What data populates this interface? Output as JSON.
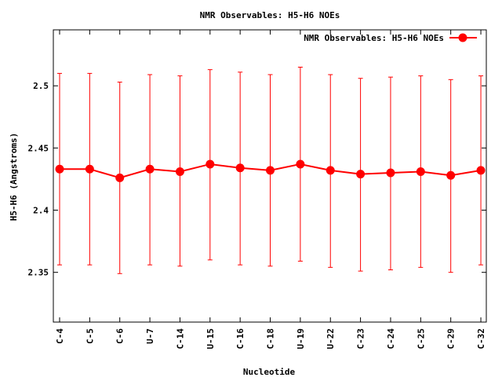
{
  "chart_data": {
    "type": "line",
    "title": "NMR Observables: H5-H6 NOEs",
    "xlabel": "Nucleotide",
    "ylabel": "H5-H6 (Angstroms)",
    "ylim": [
      2.31,
      2.545
    ],
    "yticks": [
      "2.35",
      "2.4",
      "2.45",
      "2.5"
    ],
    "grid": false,
    "legend_position": "top-right",
    "categories": [
      "C-4",
      "C-5",
      "C-6",
      "U-7",
      "C-14",
      "U-15",
      "C-16",
      "C-18",
      "U-19",
      "U-22",
      "C-23",
      "C-24",
      "C-25",
      "C-29",
      "C-32"
    ],
    "series": [
      {
        "name": "NMR Observables: H5-H6 NOEs",
        "color": "#ff0000",
        "values": [
          2.433,
          2.433,
          2.426,
          2.433,
          2.431,
          2.437,
          2.434,
          2.432,
          2.437,
          2.432,
          2.429,
          2.43,
          2.431,
          2.428,
          2.432
        ],
        "err_low": [
          2.356,
          2.356,
          2.349,
          2.356,
          2.355,
          2.36,
          2.356,
          2.355,
          2.359,
          2.354,
          2.351,
          2.352,
          2.354,
          2.35,
          2.356
        ],
        "err_high": [
          2.51,
          2.51,
          2.503,
          2.509,
          2.508,
          2.513,
          2.511,
          2.509,
          2.515,
          2.509,
          2.506,
          2.507,
          2.508,
          2.505,
          2.508
        ]
      }
    ]
  }
}
